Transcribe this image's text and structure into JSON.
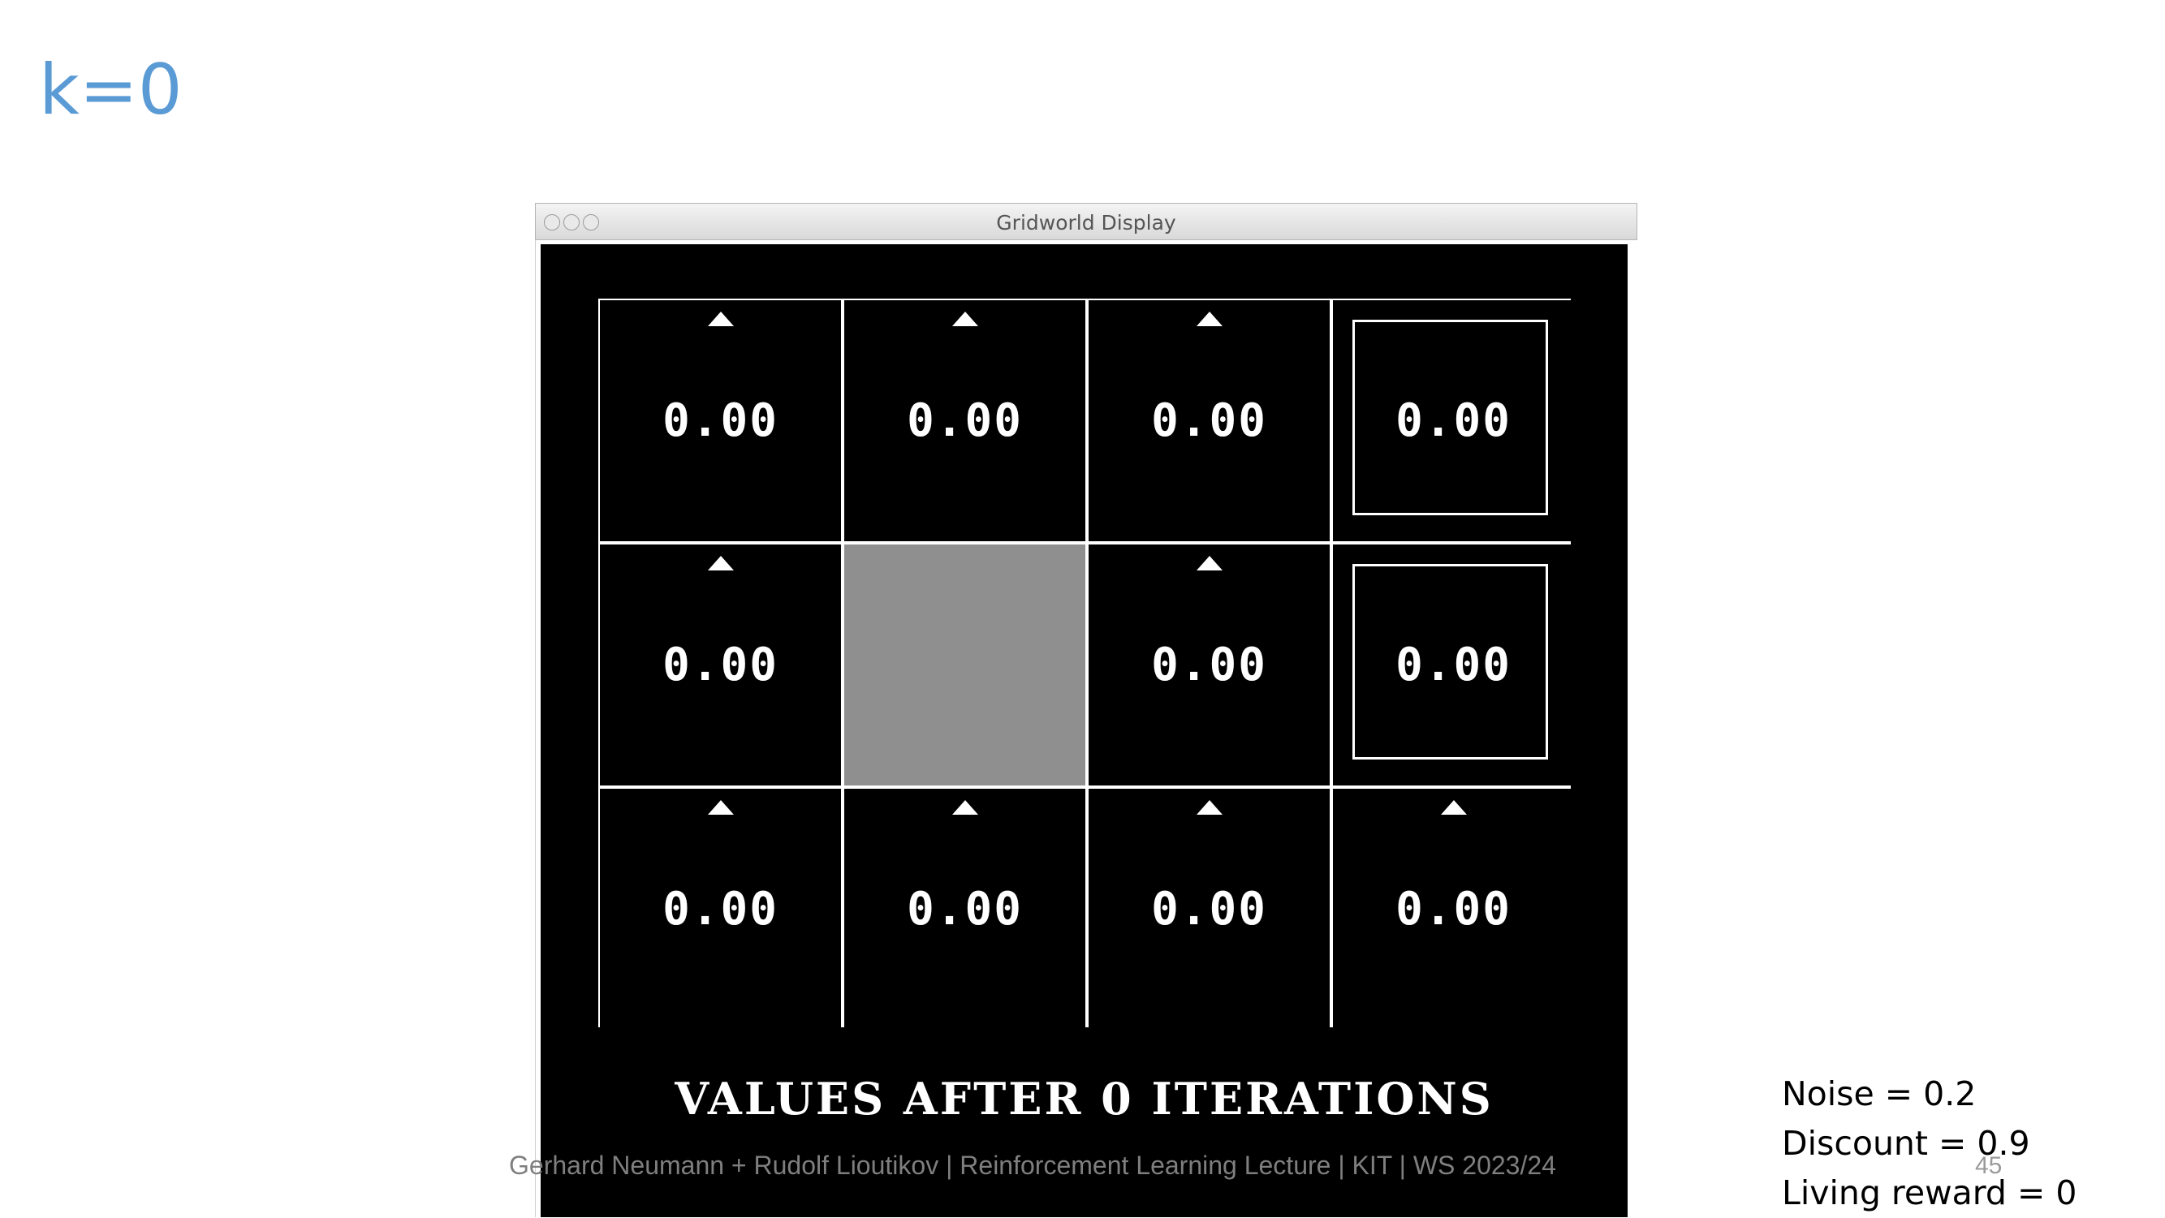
{
  "slide": {
    "title": "k=0",
    "footer": "Gerhard Neumann + Rudolf Lioutikov | Reinforcement Learning Lecture | KIT | WS 2023/24",
    "page_number": "45"
  },
  "window": {
    "title": "Gridworld Display",
    "caption": "VALUES AFTER 0 ITERATIONS"
  },
  "grid": {
    "rows": [
      [
        {
          "value": "0.00",
          "arrow": "up"
        },
        {
          "value": "0.00",
          "arrow": "up"
        },
        {
          "value": "0.00",
          "arrow": "up"
        },
        {
          "value": "0.00",
          "terminal": true
        }
      ],
      [
        {
          "value": "0.00",
          "arrow": "up"
        },
        {
          "wall": true
        },
        {
          "value": "0.00",
          "arrow": "up"
        },
        {
          "value": "0.00",
          "terminal": true
        }
      ],
      [
        {
          "value": "0.00",
          "arrow": "up"
        },
        {
          "value": "0.00",
          "arrow": "up"
        },
        {
          "value": "0.00",
          "arrow": "up"
        },
        {
          "value": "0.00",
          "arrow": "up"
        }
      ]
    ]
  },
  "params": {
    "noise": "Noise = 0.2",
    "discount": "Discount = 0.9",
    "living_reward": "Living reward = 0"
  },
  "colors": {
    "title": "#5b9bd5",
    "wall": "#8f8f8f",
    "background": "#000000"
  }
}
